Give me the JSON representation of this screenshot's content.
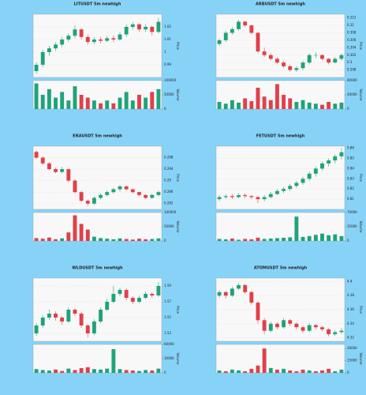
{
  "chart_data": [
    {
      "type": "candlestick",
      "title": "LITUSDT 5m newhigh",
      "ylabel": "Price",
      "vlabel": "Volume",
      "up_color": "#1fa37a",
      "down_color": "#e0404a",
      "ylim": [
        0.98,
        1.03
      ],
      "yticks": [
        0.99,
        1.0,
        1.01,
        1.02
      ],
      "vlim": [
        0,
        100000
      ],
      "vticks": [
        0,
        50000,
        100000
      ],
      "candles": [
        [
          0.985,
          0.992,
          0.983,
          0.99
        ],
        [
          0.99,
          1.002,
          0.988,
          1.0
        ],
        [
          1.0,
          1.005,
          0.997,
          1.003
        ],
        [
          1.003,
          1.008,
          1.001,
          1.006
        ],
        [
          1.006,
          1.012,
          1.004,
          1.01
        ],
        [
          1.01,
          1.015,
          1.008,
          1.013
        ],
        [
          1.013,
          1.021,
          1.011,
          1.018
        ],
        [
          1.018,
          1.019,
          1.01,
          1.012
        ],
        [
          1.012,
          1.014,
          1.006,
          1.008
        ],
        [
          1.008,
          1.012,
          1.006,
          1.01
        ],
        [
          1.01,
          1.012,
          1.007,
          1.009
        ],
        [
          1.009,
          1.013,
          1.008,
          1.011
        ],
        [
          1.011,
          1.013,
          1.008,
          1.01
        ],
        [
          1.01,
          1.016,
          1.009,
          1.014
        ],
        [
          1.014,
          1.022,
          1.012,
          1.02
        ],
        [
          1.02,
          1.024,
          1.018,
          1.022
        ],
        [
          1.022,
          1.023,
          1.016,
          1.018
        ],
        [
          1.018,
          1.022,
          1.016,
          1.02
        ],
        [
          1.02,
          1.021,
          1.013,
          1.016
        ],
        [
          1.016,
          1.027,
          1.015,
          1.024
        ]
      ],
      "volume": [
        90000,
        50000,
        70000,
        40000,
        60000,
        30000,
        80000,
        50000,
        40000,
        30000,
        20000,
        30000,
        20000,
        40000,
        60000,
        30000,
        50000,
        40000,
        60000,
        70000
      ]
    },
    {
      "type": "candlestick",
      "title": "ARBUSDT 5m newhigh",
      "ylabel": "Price",
      "vlabel": "Volume",
      "up_color": "#1fa37a",
      "down_color": "#e0404a",
      "ylim": [
        0.296,
        0.313
      ],
      "yticks": [
        0.298,
        0.3,
        0.302,
        0.304,
        0.306,
        0.308,
        0.31,
        0.312
      ],
      "vlim": [
        0,
        80000
      ],
      "vticks": [
        0,
        40000,
        80000
      ],
      "candles": [
        [
          0.305,
          0.3065,
          0.3045,
          0.306
        ],
        [
          0.306,
          0.3085,
          0.3055,
          0.308
        ],
        [
          0.308,
          0.3095,
          0.3075,
          0.309
        ],
        [
          0.309,
          0.3115,
          0.3085,
          0.311
        ],
        [
          0.311,
          0.3112,
          0.3095,
          0.31
        ],
        [
          0.31,
          0.3102,
          0.3075,
          0.308
        ],
        [
          0.308,
          0.3082,
          0.3025,
          0.303
        ],
        [
          0.303,
          0.304,
          0.3015,
          0.302
        ],
        [
          0.302,
          0.3025,
          0.3005,
          0.301
        ],
        [
          0.301,
          0.3015,
          0.2995,
          0.3
        ],
        [
          0.3,
          0.3005,
          0.2985,
          0.299
        ],
        [
          0.299,
          0.2995,
          0.2975,
          0.298
        ],
        [
          0.298,
          0.299,
          0.2975,
          0.2985
        ],
        [
          0.2985,
          0.3005,
          0.298,
          0.3
        ],
        [
          0.3,
          0.3025,
          0.2995,
          0.302
        ],
        [
          0.302,
          0.3028,
          0.3012,
          0.302
        ],
        [
          0.302,
          0.3022,
          0.3005,
          0.301
        ],
        [
          0.301,
          0.3012,
          0.2995,
          0.3
        ],
        [
          0.3,
          0.3015,
          0.2998,
          0.301
        ],
        [
          0.301,
          0.3025,
          0.3005,
          0.302
        ]
      ],
      "volume": [
        20000,
        15000,
        25000,
        18000,
        30000,
        22000,
        60000,
        35000,
        25000,
        70000,
        40000,
        30000,
        20000,
        25000,
        18000,
        15000,
        12000,
        20000,
        15000,
        18000
      ]
    },
    {
      "type": "candlestick",
      "title": "ENAUSDT 5m newhigh",
      "ylabel": "Price",
      "vlabel": "Volume",
      "up_color": "#1fa37a",
      "down_color": "#e0404a",
      "ylim": [
        0.28,
        0.302
      ],
      "yticks": [
        0.282,
        0.286,
        0.29,
        0.294,
        0.298
      ],
      "vlim": [
        0,
        100000
      ],
      "vticks": [
        0,
        50000,
        100000
      ],
      "candles": [
        [
          0.3,
          0.3005,
          0.2975,
          0.298
        ],
        [
          0.298,
          0.2985,
          0.2955,
          0.296
        ],
        [
          0.296,
          0.2965,
          0.2935,
          0.294
        ],
        [
          0.294,
          0.2945,
          0.2925,
          0.293
        ],
        [
          0.293,
          0.2948,
          0.2925,
          0.294
        ],
        [
          0.294,
          0.2942,
          0.2895,
          0.29
        ],
        [
          0.29,
          0.2905,
          0.2855,
          0.286
        ],
        [
          0.286,
          0.2865,
          0.2825,
          0.283
        ],
        [
          0.283,
          0.2835,
          0.2812,
          0.282
        ],
        [
          0.282,
          0.2845,
          0.2815,
          0.284
        ],
        [
          0.284,
          0.2855,
          0.2835,
          0.285
        ],
        [
          0.285,
          0.2865,
          0.2845,
          0.286
        ],
        [
          0.286,
          0.2875,
          0.2855,
          0.287
        ],
        [
          0.287,
          0.2885,
          0.2862,
          0.288
        ],
        [
          0.288,
          0.2882,
          0.2865,
          0.287
        ],
        [
          0.287,
          0.2872,
          0.2855,
          0.286
        ],
        [
          0.286,
          0.2862,
          0.2845,
          0.285
        ],
        [
          0.285,
          0.2852,
          0.2835,
          0.284
        ],
        [
          0.284,
          0.2855,
          0.2836,
          0.285
        ],
        [
          0.285,
          0.2865,
          0.2845,
          0.286
        ]
      ],
      "volume": [
        10000,
        8000,
        12000,
        6000,
        9000,
        30000,
        90000,
        60000,
        40000,
        15000,
        10000,
        8000,
        6000,
        9000,
        7000,
        5000,
        8000,
        6000,
        7000,
        9000
      ]
    },
    {
      "type": "candlestick",
      "title": "FETUSDT 5m newhigh",
      "ylabel": "Price",
      "vlabel": "Volume",
      "up_color": "#1fa37a",
      "down_color": "#e0404a",
      "ylim": [
        0.8,
        0.862
      ],
      "yticks": [
        0.81,
        0.82,
        0.83,
        0.84,
        0.85,
        0.86
      ],
      "vlim": [
        0,
        70000
      ],
      "vticks": [
        0,
        35000,
        70000
      ],
      "candles": [
        [
          0.81,
          0.814,
          0.808,
          0.812
        ],
        [
          0.812,
          0.815,
          0.81,
          0.813
        ],
        [
          0.813,
          0.815,
          0.81,
          0.812
        ],
        [
          0.812,
          0.816,
          0.811,
          0.814
        ],
        [
          0.814,
          0.816,
          0.811,
          0.813
        ],
        [
          0.813,
          0.814,
          0.81,
          0.812
        ],
        [
          0.812,
          0.813,
          0.806,
          0.81
        ],
        [
          0.81,
          0.814,
          0.808,
          0.812
        ],
        [
          0.812,
          0.817,
          0.811,
          0.815
        ],
        [
          0.815,
          0.82,
          0.814,
          0.818
        ],
        [
          0.818,
          0.822,
          0.816,
          0.82
        ],
        [
          0.82,
          0.825,
          0.818,
          0.823
        ],
        [
          0.823,
          0.828,
          0.821,
          0.826
        ],
        [
          0.826,
          0.832,
          0.824,
          0.83
        ],
        [
          0.83,
          0.837,
          0.828,
          0.835
        ],
        [
          0.835,
          0.842,
          0.832,
          0.84
        ],
        [
          0.84,
          0.847,
          0.838,
          0.845
        ],
        [
          0.845,
          0.85,
          0.842,
          0.848
        ],
        [
          0.848,
          0.854,
          0.845,
          0.852
        ],
        [
          0.852,
          0.86,
          0.849,
          0.856
        ]
      ],
      "volume": [
        5000,
        4000,
        6000,
        3000,
        5000,
        4000,
        8000,
        5000,
        6000,
        7000,
        8000,
        9000,
        60000,
        10000,
        12000,
        15000,
        18000,
        14000,
        16000,
        12000
      ]
    },
    {
      "type": "candlestick",
      "title": "WLDUSDT 5m newhigh",
      "ylabel": "Price",
      "vlabel": "Volume",
      "up_color": "#1fa37a",
      "down_color": "#e0404a",
      "ylim": [
        1.52,
        1.6
      ],
      "yticks": [
        1.53,
        1.55,
        1.57,
        1.59
      ],
      "vlim": [
        0,
        60000
      ],
      "vticks": [
        0,
        30000,
        60000
      ],
      "candles": [
        [
          1.53,
          1.543,
          1.527,
          1.54
        ],
        [
          1.54,
          1.553,
          1.537,
          1.55
        ],
        [
          1.55,
          1.56,
          1.547,
          1.555
        ],
        [
          1.555,
          1.558,
          1.546,
          1.55
        ],
        [
          1.55,
          1.552,
          1.541,
          1.545
        ],
        [
          1.545,
          1.563,
          1.543,
          1.56
        ],
        [
          1.56,
          1.562,
          1.552,
          1.555
        ],
        [
          1.555,
          1.557,
          1.537,
          1.54
        ],
        [
          1.54,
          1.542,
          1.525,
          1.53
        ],
        [
          1.53,
          1.548,
          1.528,
          1.545
        ],
        [
          1.545,
          1.563,
          1.543,
          1.56
        ],
        [
          1.56,
          1.574,
          1.558,
          1.57
        ],
        [
          1.57,
          1.59,
          1.568,
          1.58
        ],
        [
          1.58,
          1.588,
          1.577,
          1.585
        ],
        [
          1.585,
          1.587,
          1.572,
          1.575
        ],
        [
          1.575,
          1.577,
          1.567,
          1.57
        ],
        [
          1.57,
          1.578,
          1.568,
          1.575
        ],
        [
          1.575,
          1.583,
          1.573,
          1.58
        ],
        [
          1.58,
          1.582,
          1.575,
          1.578
        ],
        [
          1.578,
          1.595,
          1.576,
          1.59
        ]
      ],
      "volume": [
        8000,
        6000,
        5000,
        7000,
        4000,
        9000,
        6000,
        10000,
        12000,
        8000,
        7000,
        9000,
        50000,
        8000,
        6000,
        5000,
        4000,
        6000,
        5000,
        9000
      ]
    },
    {
      "type": "candlestick",
      "title": "ATOMUSDT 5m newhigh",
      "ylabel": "Price",
      "vlabel": "Volume",
      "up_color": "#1fa37a",
      "down_color": "#e0404a",
      "ylim": [
        4.315,
        4.405
      ],
      "yticks": [
        4.32,
        4.34,
        4.36,
        4.38,
        4.4
      ],
      "vlim": [
        0,
        35000
      ],
      "vticks": [
        0,
        15000,
        30000
      ],
      "candles": [
        [
          4.38,
          4.388,
          4.377,
          4.385
        ],
        [
          4.385,
          4.387,
          4.376,
          4.38
        ],
        [
          4.38,
          4.393,
          4.378,
          4.39
        ],
        [
          4.39,
          4.398,
          4.388,
          4.395
        ],
        [
          4.395,
          4.397,
          4.382,
          4.385
        ],
        [
          4.385,
          4.387,
          4.367,
          4.37
        ],
        [
          4.37,
          4.372,
          4.34,
          4.345
        ],
        [
          4.345,
          4.348,
          4.325,
          4.33
        ],
        [
          4.33,
          4.343,
          4.328,
          4.34
        ],
        [
          4.34,
          4.342,
          4.332,
          4.335
        ],
        [
          4.335,
          4.348,
          4.333,
          4.345
        ],
        [
          4.345,
          4.347,
          4.337,
          4.34
        ],
        [
          4.34,
          4.342,
          4.332,
          4.335
        ],
        [
          4.335,
          4.337,
          4.327,
          4.33
        ],
        [
          4.33,
          4.341,
          4.328,
          4.338
        ],
        [
          4.338,
          4.34,
          4.332,
          4.335
        ],
        [
          4.335,
          4.337,
          4.329,
          4.332
        ],
        [
          4.332,
          4.334,
          4.322,
          4.325
        ],
        [
          4.325,
          4.331,
          4.323,
          4.328
        ],
        [
          4.328,
          4.334,
          4.326,
          4.33
        ]
      ],
      "volume": [
        3000,
        2000,
        4000,
        3000,
        2000,
        5000,
        9000,
        30000,
        6000,
        4000,
        5000,
        3000,
        2000,
        4000,
        3000,
        2000,
        3000,
        5000,
        2000,
        4000
      ]
    }
  ]
}
